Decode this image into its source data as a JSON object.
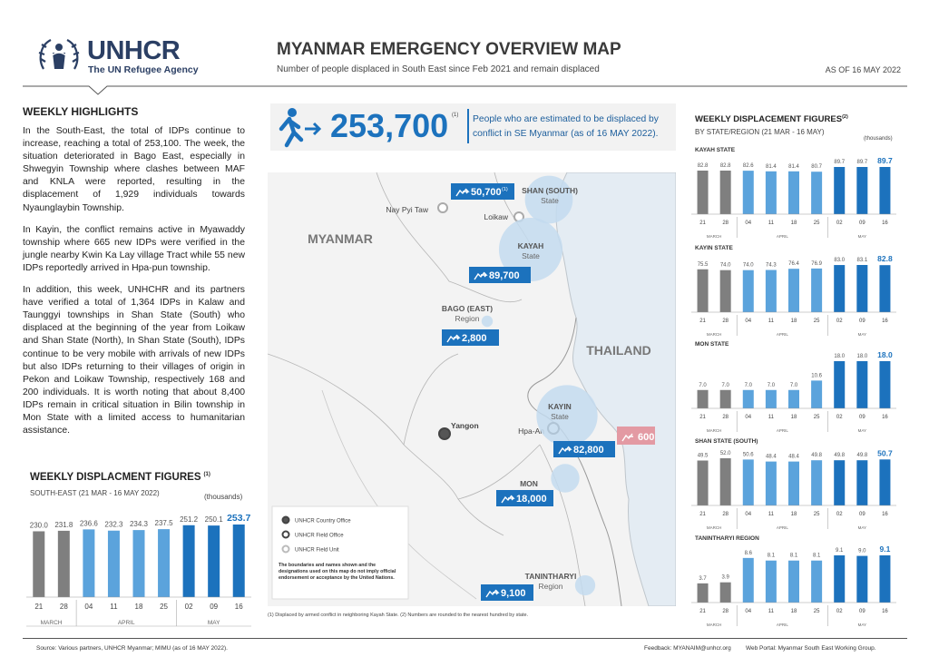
{
  "header": {
    "logo": "UNHCR",
    "logo_tagline": "The UN Refugee Agency",
    "title": "MYANMAR EMERGENCY OVERVIEW MAP",
    "subtitle": "Number of people displaced in South East since Feb 2021 and remain displaced",
    "date": "AS OF 16 MAY 2022"
  },
  "highlights": {
    "title": "WEEKLY HIGHLIGHTS",
    "paragraphs": [
      "In the South-East, the total of IDPs continue to increase, reaching a total of 253,100. The week, the situation deteriorated in Bago East, especially in Shwegyin Township where clashes between MAF and KNLA were reported, resulting in the displacement of 1,929 individuals towards Nyaunglaybin Township.",
      "In Kayin, the conflict remains active in Myawaddy township where 665 new IDPs were verified in the jungle nearby Kwin Ka Lay village Tract while 55 new IDPs reportedly arrived in Hpa-pun township.",
      "In addition, this week, UNHCHR and its partners have verified a total of 1,364 IDPs in Kalaw and Taunggyi townships in Shan State (South) who displaced at the beginning of the year from Loikaw and Shan State (North), In Shan State (South), IDPs continue to be very mobile with arrivals of new IDPs but also IDPs returning to their villages of origin in Pekon and Loikaw Township, respectively 168 and 200 individuals. It is worth noting that about 8,400 IDPs remain in critical situation in Bilin township in Mon State with a limited access to humanitarian assistance."
    ]
  },
  "total": {
    "value": 253700,
    "value_label": "253,700",
    "note": "(1)",
    "description": "People who are estimated to be displaced by conflict in SE Myanmar (as of 16 MAY 2022)."
  },
  "map": {
    "countries": [
      "MYANMAR",
      "THAILAND"
    ],
    "places": [
      "Nay Pyi Taw",
      "Loikaw",
      "Yangon",
      "Hpa-An"
    ],
    "regions": [
      {
        "name": "SHAN (SOUTH)",
        "kind": "State",
        "value": 50700,
        "value_label": "50,700",
        "note": "(1)"
      },
      {
        "name": "KAYAH",
        "kind": "State",
        "value": 89700,
        "value_label": "89,700"
      },
      {
        "name": "BAGO (EAST)",
        "kind": "Region",
        "value": 2800,
        "value_label": "2,800"
      },
      {
        "name": "KAYIN",
        "kind": "State",
        "value": 82800,
        "value_label": "82,800"
      },
      {
        "name": "MON",
        "kind": "State",
        "value": 18000,
        "value_label": "18,000"
      },
      {
        "name": "TANINTHARYI",
        "kind": "Region",
        "value": 9100,
        "value_label": "9,100"
      }
    ],
    "thailand_value": 600,
    "legend": [
      "UNHCR Country Office",
      "UNHCR Field Office",
      "UNHCR Field Unit"
    ],
    "disclaimer": "The boundaries and names shown and the designations used on this map do not imply official endorsement or acceptance by the United Nations."
  },
  "weeks": [
    "21",
    "28",
    "04",
    "11",
    "18",
    "25",
    "02",
    "09",
    "16"
  ],
  "months": [
    "MARCH",
    "APRIL",
    "MAY"
  ],
  "bar_colors": [
    "#7f7f7f",
    "#5ba3dc",
    "#1c72bd"
  ],
  "southeast_chart": {
    "title": "WEEKLY DISPLACMENT FIGURES",
    "note": "(1)",
    "subtitle": "SOUTH-EAST (21 MAR - 16 MAY 2022)",
    "units": "(thousands)",
    "values": [
      230,
      231.8,
      236.6,
      232.3,
      234.3,
      237.5,
      251.2,
      250.1,
      253.7
    ],
    "value_labels": [
      "230.0",
      "231.8",
      "236.6",
      "232.3",
      "234.3",
      "237.5",
      "251.2",
      "250.1",
      "253.7"
    ]
  },
  "state_charts": {
    "title": "WEEKLY DISPLACEMENT FIGURES",
    "note": "(2)",
    "subtitle": "BY STATE/REGION (21 MAR - 16 MAY)",
    "units": "(thousands)",
    "items": [
      {
        "name": "KAYAH STATE",
        "values": [
          82.8,
          82.8,
          82.6,
          81.4,
          81.4,
          80.7,
          89.7,
          89.7,
          89.7
        ],
        "value_labels": [
          "82.8",
          "82.8",
          "82.6",
          "81.4",
          "81.4",
          "80.7",
          "89.7",
          "89.7",
          "89.7"
        ]
      },
      {
        "name": "KAYIN STATE",
        "values": [
          75.5,
          74,
          74,
          74.3,
          76.4,
          76.9,
          83,
          83.1,
          82.8
        ],
        "value_labels": [
          "75.5",
          "74.0",
          "74.0",
          "74.3",
          "76.4",
          "76.9",
          "83.0",
          "83.1",
          "82.8"
        ]
      },
      {
        "name": "MON STATE",
        "values": [
          7,
          7,
          7,
          7,
          7,
          10.6,
          18,
          18,
          18
        ],
        "value_labels": [
          "7.0",
          "7.0",
          "7.0",
          "7.0",
          "7.0",
          "10.6",
          "18.0",
          "18.0",
          "18.0"
        ]
      },
      {
        "name": "SHAN STATE (SOUTH)",
        "values": [
          49.5,
          52,
          50.6,
          48.4,
          48.4,
          49.8,
          49.8,
          49.8,
          50.7
        ],
        "value_labels": [
          "49.5",
          "52.0",
          "50.6",
          "48.4",
          "48.4",
          "49.8",
          "49.8",
          "49.8",
          "50.7"
        ]
      },
      {
        "name": "TANINTHARYI REGION",
        "values": [
          3.7,
          3.9,
          8.6,
          8.1,
          8.1,
          8.1,
          9.1,
          9,
          9.1
        ],
        "value_labels": [
          "3.7",
          "3.9",
          "8.6",
          "8.1",
          "8.1",
          "8.1",
          "9.1",
          "9.0",
          "9.1"
        ]
      }
    ]
  },
  "footnote": "(1) Displaced by armed conflict in neighboring Kayah State. (2) Numbers are rounded to the nearest hundred by state.",
  "footer": {
    "source": "Source: Various partners, UNHCR Myanmar; MIMU (as of 16 MAY 2022).",
    "feedback": "Feedback: MYANAIM@unhcr.org",
    "portal": "Web Portal: Myanmar South East Working Group."
  }
}
